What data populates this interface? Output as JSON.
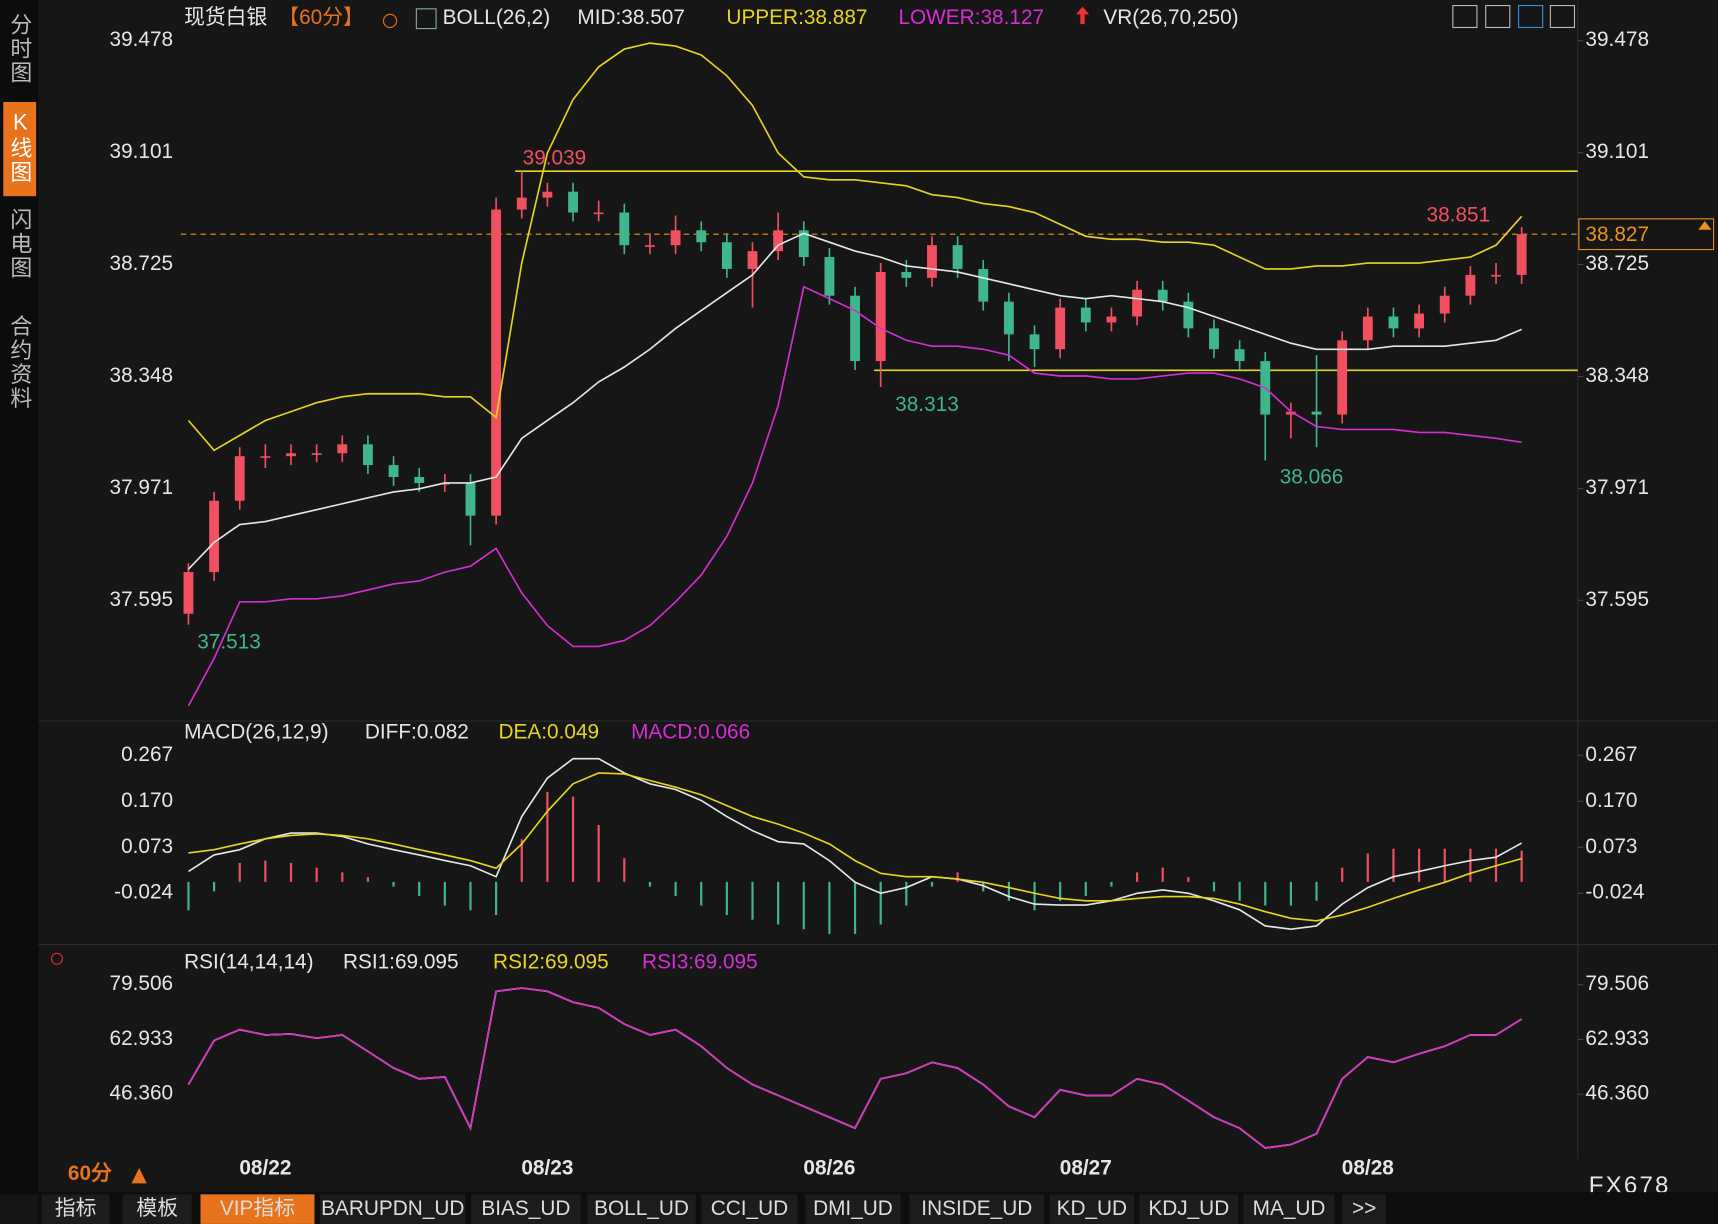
{
  "sidebar": [
    "分时图",
    "K线图",
    "闪电图",
    "合约资料"
  ],
  "toolbar": {
    "period": "60分",
    "tabs": [
      "指标",
      "模板",
      "VIP指标",
      "BARUPDN_UD",
      "BIAS_UD",
      "BOLL_UD",
      "CCI_UD",
      "DMI_UD",
      "INSIDE_UD",
      "KD_UD",
      "KDJ_UD",
      "MA_UD",
      ">>"
    ],
    "brand": "FX678"
  },
  "chart_data": [
    {
      "type": "candlestick",
      "title": "现货白银",
      "period": "【60分】",
      "indicator": "BOLL(26,2)",
      "extra": "VR(26,70,250)",
      "up_color": "#f0505f",
      "down_color": "#3fb68b",
      "categories": [
        null,
        null,
        null,
        "08/22",
        null,
        null,
        null,
        null,
        null,
        null,
        null,
        null,
        null,
        null,
        "08/23",
        null,
        null,
        null,
        null,
        null,
        null,
        null,
        null,
        null,
        null,
        "08/26",
        null,
        null,
        null,
        null,
        null,
        null,
        null,
        null,
        null,
        "08/27",
        null,
        null,
        null,
        null,
        null,
        null,
        null,
        null,
        null,
        null,
        "08/28",
        null,
        null,
        null,
        null,
        null,
        null
      ],
      "candles": [
        [
          37.55,
          37.72,
          37.513,
          37.69
        ],
        [
          37.69,
          37.96,
          37.66,
          37.93
        ],
        [
          37.93,
          38.11,
          37.9,
          38.08
        ],
        [
          38.08,
          38.12,
          38.04,
          38.08
        ],
        [
          38.08,
          38.12,
          38.05,
          38.09
        ],
        [
          38.09,
          38.12,
          38.06,
          38.09
        ],
        [
          38.09,
          38.15,
          38.06,
          38.12
        ],
        [
          38.12,
          38.15,
          38.02,
          38.05
        ],
        [
          38.05,
          38.08,
          37.98,
          38.01
        ],
        [
          38.01,
          38.04,
          37.96,
          37.99
        ],
        [
          37.99,
          38.02,
          37.96,
          37.99
        ],
        [
          37.99,
          38.02,
          37.78,
          37.88
        ],
        [
          37.88,
          38.95,
          37.85,
          38.91
        ],
        [
          38.91,
          39.039,
          38.88,
          38.95
        ],
        [
          38.95,
          39.0,
          38.92,
          38.97
        ],
        [
          38.97,
          39.0,
          38.87,
          38.9
        ],
        [
          38.9,
          38.94,
          38.87,
          38.9
        ],
        [
          38.9,
          38.93,
          38.76,
          38.79
        ],
        [
          38.79,
          38.83,
          38.76,
          38.79
        ],
        [
          38.79,
          38.89,
          38.76,
          38.84
        ],
        [
          38.84,
          38.87,
          38.77,
          38.8
        ],
        [
          38.8,
          38.83,
          38.68,
          38.71
        ],
        [
          38.71,
          38.8,
          38.58,
          38.77
        ],
        [
          38.77,
          38.9,
          38.74,
          38.84
        ],
        [
          38.84,
          38.87,
          38.72,
          38.75
        ],
        [
          38.75,
          38.78,
          38.59,
          38.62
        ],
        [
          38.62,
          38.65,
          38.37,
          38.4
        ],
        [
          38.4,
          38.73,
          38.313,
          38.7
        ],
        [
          38.7,
          38.74,
          38.65,
          38.68
        ],
        [
          38.68,
          38.82,
          38.65,
          38.79
        ],
        [
          38.79,
          38.82,
          38.68,
          38.71
        ],
        [
          38.71,
          38.74,
          38.57,
          38.6
        ],
        [
          38.6,
          38.63,
          38.4,
          38.49
        ],
        [
          38.49,
          38.52,
          38.38,
          38.44
        ],
        [
          38.44,
          38.61,
          38.41,
          38.58
        ],
        [
          38.58,
          38.61,
          38.5,
          38.53
        ],
        [
          38.53,
          38.58,
          38.5,
          38.55
        ],
        [
          38.55,
          38.67,
          38.52,
          38.64
        ],
        [
          38.64,
          38.67,
          38.57,
          38.6
        ],
        [
          38.6,
          38.63,
          38.48,
          38.51
        ],
        [
          38.51,
          38.54,
          38.41,
          38.44
        ],
        [
          38.44,
          38.47,
          38.37,
          38.4
        ],
        [
          38.4,
          38.43,
          38.066,
          38.22
        ],
        [
          38.22,
          38.26,
          38.14,
          38.23
        ],
        [
          38.23,
          38.42,
          38.11,
          38.22
        ],
        [
          38.22,
          38.5,
          38.19,
          38.47
        ],
        [
          38.47,
          38.58,
          38.44,
          38.55
        ],
        [
          38.55,
          38.58,
          38.48,
          38.51
        ],
        [
          38.51,
          38.59,
          38.48,
          38.56
        ],
        [
          38.56,
          38.65,
          38.53,
          38.62
        ],
        [
          38.62,
          38.72,
          38.59,
          38.69
        ],
        [
          38.69,
          38.73,
          38.66,
          38.69
        ],
        [
          38.69,
          38.851,
          38.66,
          38.827
        ]
      ],
      "series": [
        {
          "name": "MID:38.507",
          "color": "#e6e6e6",
          "values": [
            37.7,
            37.79,
            37.85,
            37.86,
            37.88,
            37.9,
            37.92,
            37.94,
            37.96,
            37.97,
            37.99,
            37.99,
            38.01,
            38.14,
            38.2,
            38.26,
            38.33,
            38.38,
            38.44,
            38.51,
            38.57,
            38.63,
            38.69,
            38.79,
            38.83,
            38.8,
            38.77,
            38.75,
            38.72,
            38.71,
            38.7,
            38.68,
            38.66,
            38.64,
            38.62,
            38.61,
            38.62,
            38.61,
            38.6,
            38.58,
            38.55,
            38.52,
            38.49,
            38.46,
            38.44,
            38.44,
            38.44,
            38.45,
            38.45,
            38.45,
            38.46,
            38.47,
            38.507
          ]
        },
        {
          "name": "UPPER:38.887",
          "color": "#e6d51e",
          "values": [
            38.2,
            38.1,
            38.15,
            38.2,
            38.23,
            38.26,
            38.28,
            38.29,
            38.29,
            38.29,
            38.28,
            38.28,
            38.21,
            38.73,
            39.1,
            39.28,
            39.39,
            39.45,
            39.47,
            39.46,
            39.43,
            39.36,
            39.26,
            39.1,
            39.02,
            39.01,
            39.01,
            39.0,
            38.99,
            38.96,
            38.95,
            38.93,
            38.92,
            38.9,
            38.86,
            38.82,
            38.81,
            38.81,
            38.8,
            38.8,
            38.79,
            38.75,
            38.71,
            38.71,
            38.72,
            38.72,
            38.73,
            38.73,
            38.73,
            38.74,
            38.75,
            38.79,
            38.887
          ]
        },
        {
          "name": "LOWER:38.127",
          "color": "#d52ed5",
          "values": [
            37.24,
            37.4,
            37.59,
            37.59,
            37.6,
            37.6,
            37.61,
            37.63,
            37.65,
            37.66,
            37.69,
            37.71,
            37.77,
            37.62,
            37.51,
            37.44,
            37.44,
            37.46,
            37.51,
            37.59,
            37.68,
            37.81,
            37.99,
            38.25,
            38.65,
            38.61,
            38.57,
            38.51,
            38.47,
            38.45,
            38.45,
            38.44,
            38.42,
            38.36,
            38.35,
            38.35,
            38.34,
            38.34,
            38.35,
            38.36,
            38.36,
            38.34,
            38.31,
            38.23,
            38.18,
            38.17,
            38.17,
            38.17,
            38.16,
            38.16,
            38.15,
            38.14,
            38.127
          ]
        }
      ],
      "support_line": 38.369,
      "ylim": [
        37.2,
        39.6
      ],
      "yticks": [
        39.478,
        39.101,
        38.725,
        38.348,
        37.971,
        37.595
      ]
    },
    {
      "type": "line",
      "title": "MACD(26,12,9)",
      "up_color": "#f0505f",
      "down_color": "#3fb68b",
      "series": [
        {
          "name": "DIFF:0.082",
          "color": "#e6e6e6",
          "values": [
            0.022,
            0.057,
            0.068,
            0.091,
            0.103,
            0.103,
            0.096,
            0.08,
            0.068,
            0.057,
            0.045,
            0.034,
            0.011,
            0.138,
            0.219,
            0.26,
            0.26,
            0.23,
            0.207,
            0.195,
            0.172,
            0.138,
            0.108,
            0.085,
            0.08,
            0.045,
            -0.001,
            -0.024,
            -0.012,
            0.011,
            0.006,
            -0.008,
            -0.031,
            -0.047,
            -0.049,
            -0.049,
            -0.04,
            -0.024,
            -0.017,
            -0.024,
            -0.04,
            -0.059,
            -0.093,
            -0.1,
            -0.093,
            -0.047,
            -0.012,
            0.011,
            0.022,
            0.034,
            0.045,
            0.052,
            0.082
          ]
        },
        {
          "name": "DEA:0.049",
          "color": "#e6d51e",
          "values": [
            0.061,
            0.068,
            0.08,
            0.091,
            0.098,
            0.101,
            0.098,
            0.091,
            0.08,
            0.068,
            0.057,
            0.045,
            0.029,
            0.08,
            0.149,
            0.207,
            0.23,
            0.228,
            0.214,
            0.2,
            0.184,
            0.161,
            0.138,
            0.122,
            0.103,
            0.08,
            0.045,
            0.018,
            0.011,
            0.011,
            0.006,
            -0.001,
            -0.012,
            -0.024,
            -0.035,
            -0.04,
            -0.04,
            -0.035,
            -0.031,
            -0.031,
            -0.035,
            -0.047,
            -0.063,
            -0.077,
            -0.082,
            -0.07,
            -0.054,
            -0.035,
            -0.017,
            -0.001,
            0.018,
            0.034,
            0.049
          ]
        },
        {
          "name": "MACD:0.066",
          "color": "#d52ed5",
          "type": "bar",
          "values": [
            -0.06,
            -0.02,
            0.04,
            0.045,
            0.04,
            0.03,
            0.02,
            0.01,
            -0.01,
            -0.03,
            -0.05,
            -0.06,
            -0.07,
            0.09,
            0.19,
            0.18,
            0.12,
            0.05,
            -0.01,
            -0.03,
            -0.05,
            -0.07,
            -0.08,
            -0.09,
            -0.1,
            -0.11,
            -0.11,
            -0.09,
            -0.05,
            -0.01,
            0.02,
            -0.02,
            -0.04,
            -0.06,
            -0.04,
            -0.03,
            -0.01,
            0.02,
            0.03,
            0.01,
            -0.02,
            -0.04,
            -0.05,
            -0.05,
            -0.04,
            0.03,
            0.06,
            0.07,
            0.07,
            0.07,
            0.07,
            0.07,
            0.066
          ]
        }
      ],
      "ylim": [
        -0.13,
        0.335
      ],
      "yticks": [
        0.267,
        {
          "value": 0.17,
          "label": "0.170"
        },
        0.073,
        -0.024
      ]
    },
    {
      "type": "line",
      "title": "RSI(14,14,14)",
      "series": [
        {
          "name": "RSI1:69.095",
          "color": "#e6e6e6",
          "values": [
            49.3,
            62.6,
            65.9,
            64.3,
            64.6,
            63.3,
            64.3,
            59.3,
            54.3,
            51.0,
            51.6,
            36.1,
            77.5,
            78.5,
            77.5,
            74.2,
            72.5,
            67.6,
            64.3,
            65.9,
            60.9,
            54.3,
            49.3,
            46.0,
            42.7,
            39.4,
            36.1,
            51.0,
            52.7,
            56.0,
            54.3,
            49.3,
            42.7,
            39.4,
            47.7,
            46.0,
            46.0,
            51.0,
            49.3,
            44.4,
            39.4,
            36.1,
            30.1,
            31.1,
            34.4,
            51.0,
            57.6,
            56.0,
            58.6,
            60.9,
            64.3,
            64.3,
            69.095
          ]
        },
        {
          "name": "RSI2:69.095",
          "color": "#e6d51e",
          "values": [
            49.3,
            62.6,
            65.9,
            64.3,
            64.6,
            63.3,
            64.3,
            59.3,
            54.3,
            51.0,
            51.6,
            36.1,
            77.5,
            78.5,
            77.5,
            74.2,
            72.5,
            67.6,
            64.3,
            65.9,
            60.9,
            54.3,
            49.3,
            46.0,
            42.7,
            39.4,
            36.1,
            51.0,
            52.7,
            56.0,
            54.3,
            49.3,
            42.7,
            39.4,
            47.7,
            46.0,
            46.0,
            51.0,
            49.3,
            44.4,
            39.4,
            36.1,
            30.1,
            31.1,
            34.4,
            51.0,
            57.6,
            56.0,
            58.6,
            60.9,
            64.3,
            64.3,
            69.095
          ]
        },
        {
          "name": "RSI3:69.095",
          "color": "#d52ed5",
          "values": [
            49.3,
            62.6,
            65.9,
            64.3,
            64.6,
            63.3,
            64.3,
            59.3,
            54.3,
            51.0,
            51.6,
            36.1,
            77.5,
            78.5,
            77.5,
            74.2,
            72.5,
            67.6,
            64.3,
            65.9,
            60.9,
            54.3,
            49.3,
            46.0,
            42.7,
            39.4,
            36.1,
            51.0,
            52.7,
            56.0,
            54.3,
            49.3,
            42.7,
            39.4,
            47.7,
            46.0,
            46.0,
            51.0,
            49.3,
            44.4,
            39.4,
            36.1,
            30.1,
            31.1,
            34.4,
            51.0,
            57.6,
            56.0,
            58.6,
            60.9,
            64.3,
            64.3,
            69.095
          ]
        }
      ],
      "ylim": [
        28,
        89
      ],
      "yticks": [
        79.506,
        62.933,
        {
          "value": 46.36,
          "label": "46.360"
        }
      ]
    }
  ]
}
